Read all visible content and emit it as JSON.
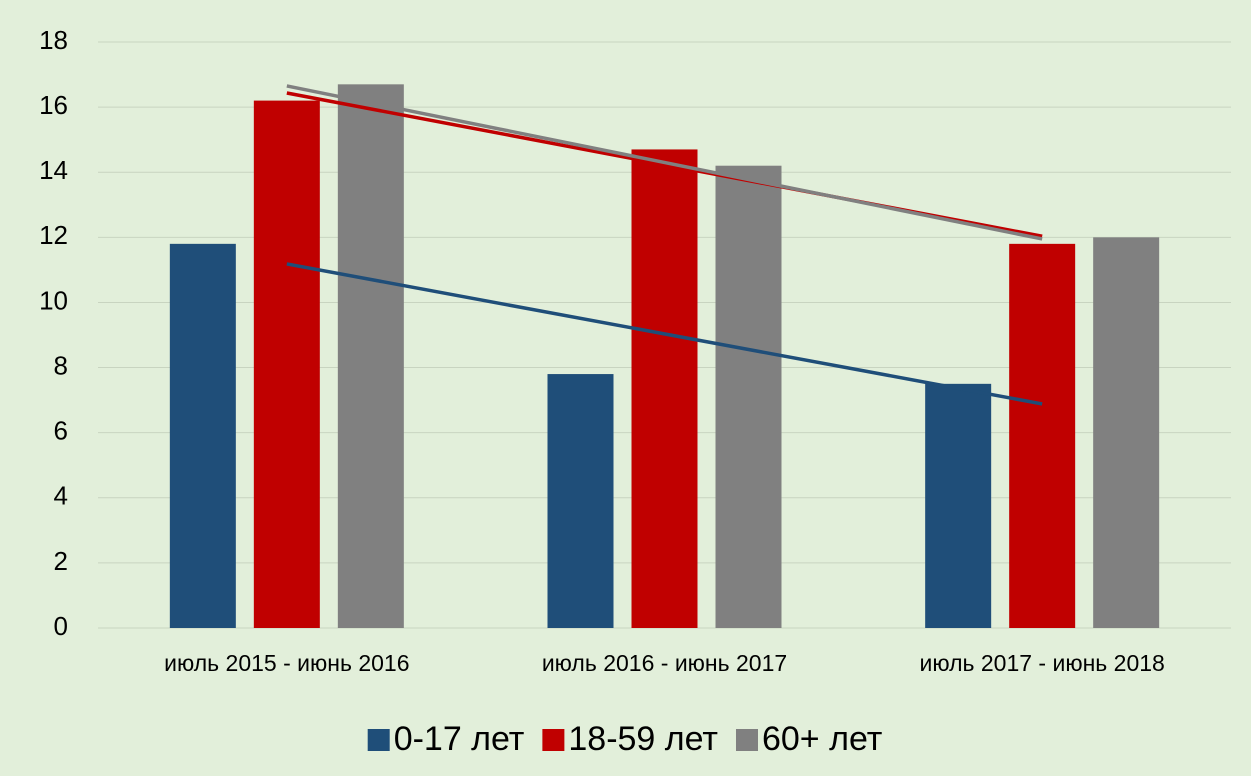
{
  "chart_data": {
    "type": "bar",
    "categories": [
      "июль 2015 - июнь 2016",
      "июль 2016 - июнь 2017",
      "июль 2017 - июнь 2018"
    ],
    "series": [
      {
        "name": "0-17 лет",
        "color": "#1f4e79",
        "values": [
          11.8,
          7.8,
          7.5
        ]
      },
      {
        "name": "18-59 лет",
        "color": "#c00000",
        "values": [
          16.2,
          14.7,
          11.8
        ]
      },
      {
        "name": "60+ лет",
        "color": "#808080",
        "values": [
          16.7,
          14.2,
          12
        ]
      }
    ],
    "ylim": [
      0,
      18
    ],
    "yticks": [
      0,
      2,
      4,
      6,
      8,
      10,
      12,
      14,
      16,
      18
    ],
    "grid": true,
    "trendline": "linear",
    "legend": "bottom"
  }
}
